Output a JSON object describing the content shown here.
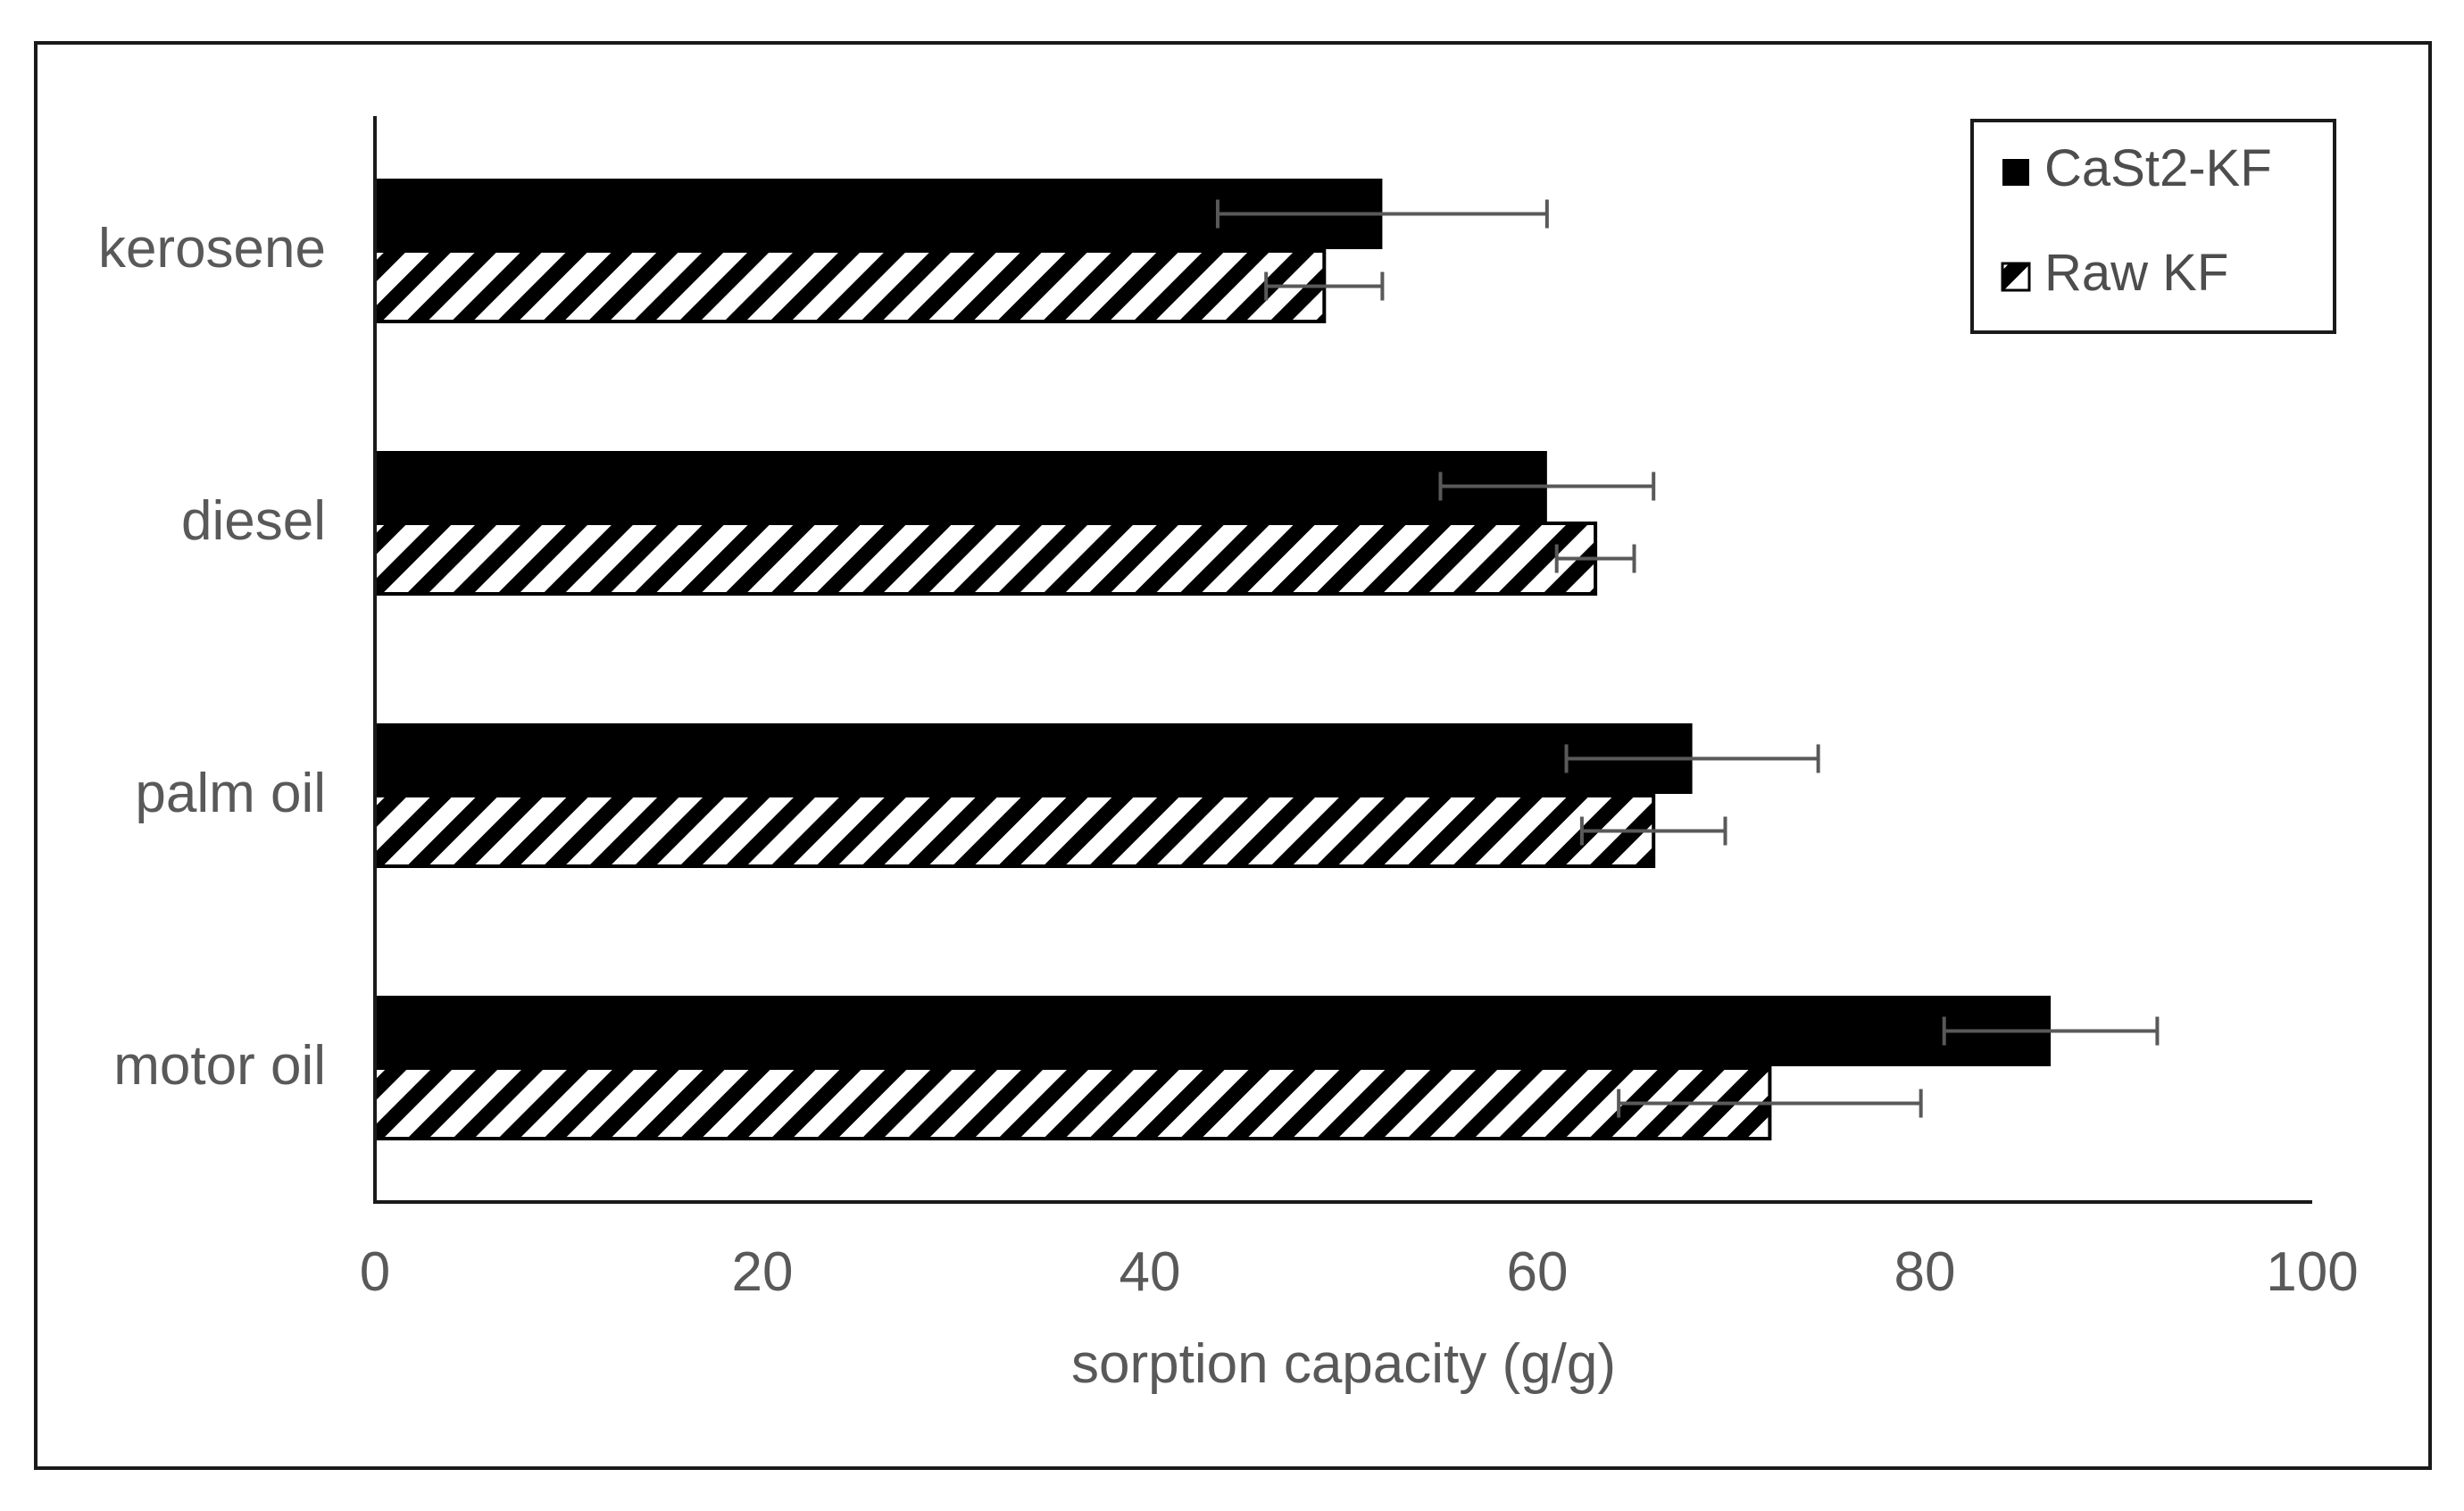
{
  "chart_data": {
    "type": "bar",
    "orientation": "horizontal",
    "categories": [
      "kerosene",
      "diesel",
      "palm oil",
      "motor oil"
    ],
    "series": [
      {
        "name": "CaSt2-KF",
        "fill": "solid-black",
        "values": [
          52,
          60.5,
          68,
          86.5
        ],
        "errors": [
          8.5,
          5.5,
          6.5,
          5.5
        ]
      },
      {
        "name": "Raw KF",
        "fill": "diagonal-hatch",
        "values": [
          49,
          63,
          66,
          72
        ],
        "errors": [
          3,
          2,
          3.7,
          7.8
        ]
      }
    ],
    "xlabel": "sorption capacity (g/g)",
    "ylabel": "",
    "xlim": [
      0,
      100
    ],
    "xticks": [
      "0",
      "20",
      "40",
      "60",
      "80",
      "100"
    ],
    "grid": false,
    "legend_position": "top-right",
    "colors": {
      "bar": "#000000",
      "hatch_background": "#ffffff",
      "error_bar": "#595959",
      "axis": "#1a1a1a",
      "text": "#595959"
    }
  }
}
